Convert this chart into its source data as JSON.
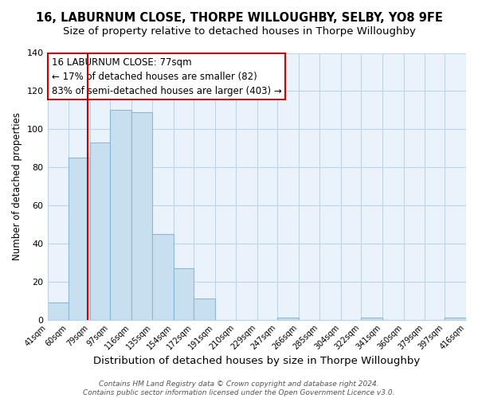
{
  "title": "16, LABURNUM CLOSE, THORPE WILLOUGHBY, SELBY, YO8 9FE",
  "subtitle": "Size of property relative to detached houses in Thorpe Willoughby",
  "xlabel": "Distribution of detached houses by size in Thorpe Willoughby",
  "ylabel": "Number of detached properties",
  "bin_edges": [
    41,
    60,
    79,
    97,
    116,
    135,
    154,
    172,
    191,
    210,
    229,
    247,
    266,
    285,
    304,
    322,
    341,
    360,
    379,
    397,
    416
  ],
  "bin_counts": [
    9,
    85,
    93,
    110,
    109,
    45,
    27,
    11,
    0,
    0,
    0,
    1,
    0,
    0,
    0,
    1,
    0,
    0,
    0,
    1
  ],
  "bar_color": "#c8dff0",
  "bar_edge_color": "#8ab8d8",
  "plot_bg_color": "#eaf3fb",
  "property_line_x": 77,
  "property_line_color": "#cc0000",
  "annotation_line1": "16 LABURNUM CLOSE: 77sqm",
  "annotation_line2": "← 17% of detached houses are smaller (82)",
  "annotation_line3": "83% of semi-detached houses are larger (403) →",
  "annotation_fontsize": 8.5,
  "ylim": [
    0,
    140
  ],
  "yticks": [
    0,
    20,
    40,
    60,
    80,
    100,
    120,
    140
  ],
  "footnote": "Contains HM Land Registry data © Crown copyright and database right 2024.\nContains public sector information licensed under the Open Government Licence v3.0.",
  "background_color": "#ffffff",
  "grid_color": "#c0d4e8",
  "title_fontsize": 10.5,
  "subtitle_fontsize": 9.5,
  "xlabel_fontsize": 9.5,
  "ylabel_fontsize": 8.5,
  "footnote_fontsize": 6.5
}
